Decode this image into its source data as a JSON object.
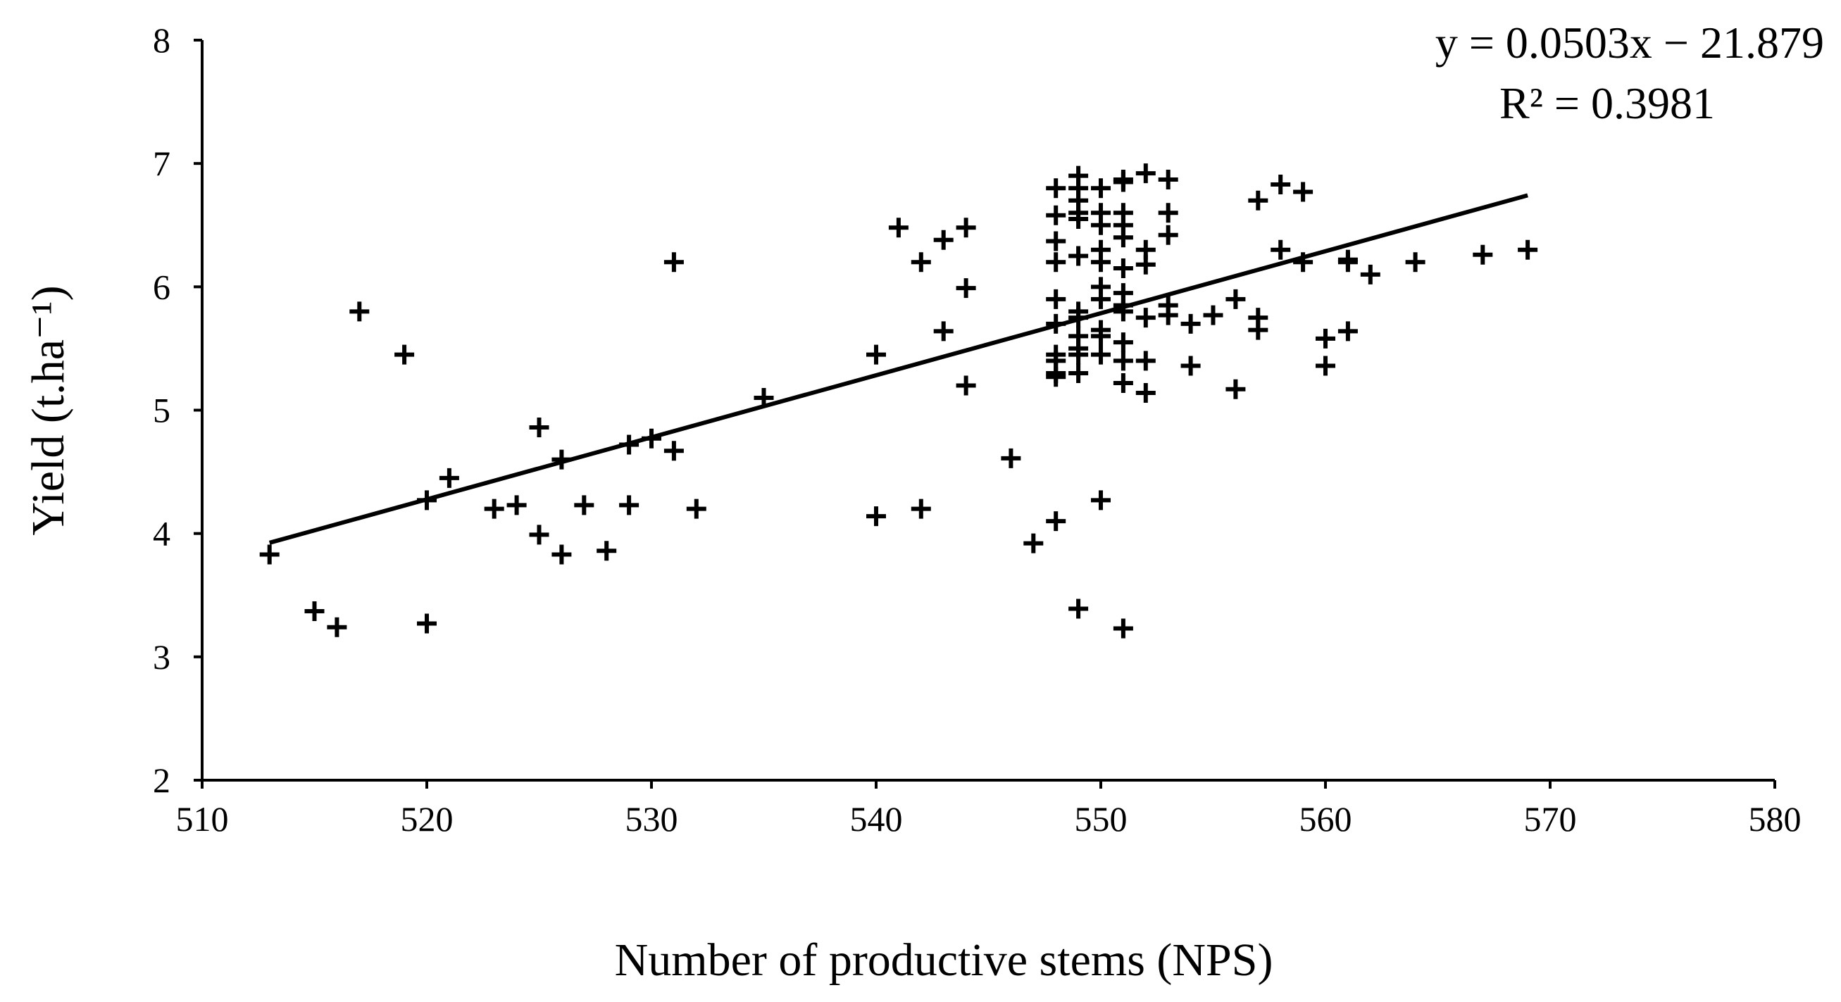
{
  "chart_data": {
    "type": "scatter",
    "title": "",
    "xlabel": "Number of productive stems (NPS)",
    "ylabel": "Yield (t.ha⁻¹)",
    "xlim": [
      510,
      580
    ],
    "ylim": [
      2,
      8
    ],
    "xticks": [
      "510",
      "520",
      "530",
      "540",
      "550",
      "560",
      "570",
      "580"
    ],
    "yticks": [
      "2",
      "3",
      "4",
      "5",
      "6",
      "7",
      "8"
    ],
    "grid": false,
    "marker": "plus",
    "trendline": {
      "slope": 0.0503,
      "intercept": -21.879,
      "x_range": [
        513,
        569
      ]
    },
    "annotations": {
      "equation": "y = 0.0503x − 21.879",
      "r2": "R² = 0.3981"
    },
    "points": [
      [
        513,
        3.83
      ],
      [
        515,
        3.37
      ],
      [
        516,
        3.24
      ],
      [
        517,
        5.8
      ],
      [
        519,
        5.45
      ],
      [
        520,
        4.27
      ],
      [
        520,
        3.27
      ],
      [
        521,
        4.45
      ],
      [
        523,
        4.2
      ],
      [
        524,
        4.23
      ],
      [
        525,
        4.86
      ],
      [
        525,
        3.99
      ],
      [
        526,
        4.6
      ],
      [
        526,
        3.83
      ],
      [
        527,
        4.23
      ],
      [
        528,
        3.86
      ],
      [
        529,
        4.72
      ],
      [
        529,
        4.23
      ],
      [
        530,
        4.77
      ],
      [
        531,
        4.67
      ],
      [
        531,
        6.2
      ],
      [
        532,
        4.2
      ],
      [
        535,
        5.1
      ],
      [
        540,
        5.45
      ],
      [
        540,
        4.14
      ],
      [
        541,
        6.48
      ],
      [
        542,
        6.2
      ],
      [
        542,
        4.2
      ],
      [
        543,
        6.38
      ],
      [
        543,
        5.64
      ],
      [
        544,
        6.48
      ],
      [
        544,
        5.99
      ],
      [
        544,
        5.2
      ],
      [
        546,
        4.61
      ],
      [
        547,
        3.92
      ],
      [
        548,
        4.1
      ],
      [
        549,
        3.39
      ],
      [
        550,
        4.27
      ],
      [
        551,
        3.23
      ],
      [
        548,
        6.8
      ],
      [
        548,
        6.58
      ],
      [
        548,
        6.37
      ],
      [
        548,
        6.2
      ],
      [
        548,
        5.9
      ],
      [
        548,
        5.7
      ],
      [
        548,
        5.45
      ],
      [
        548,
        5.4
      ],
      [
        548,
        5.3
      ],
      [
        548,
        5.27
      ],
      [
        549,
        6.9
      ],
      [
        549,
        6.8
      ],
      [
        549,
        6.7
      ],
      [
        549,
        6.6
      ],
      [
        549,
        6.55
      ],
      [
        549,
        6.25
      ],
      [
        549,
        5.8
      ],
      [
        549,
        5.75
      ],
      [
        549,
        5.6
      ],
      [
        549,
        5.5
      ],
      [
        549,
        5.45
      ],
      [
        549,
        5.3
      ],
      [
        550,
        6.8
      ],
      [
        550,
        6.6
      ],
      [
        550,
        6.5
      ],
      [
        550,
        6.3
      ],
      [
        550,
        6.2
      ],
      [
        550,
        6.0
      ],
      [
        550,
        5.9
      ],
      [
        550,
        5.65
      ],
      [
        550,
        5.6
      ],
      [
        550,
        5.45
      ],
      [
        551,
        6.87
      ],
      [
        551,
        6.85
      ],
      [
        551,
        6.6
      ],
      [
        551,
        6.5
      ],
      [
        551,
        6.4
      ],
      [
        551,
        6.15
      ],
      [
        551,
        5.95
      ],
      [
        551,
        5.85
      ],
      [
        551,
        5.8
      ],
      [
        551,
        5.55
      ],
      [
        551,
        5.4
      ],
      [
        551,
        5.22
      ],
      [
        552,
        6.92
      ],
      [
        552,
        6.3
      ],
      [
        552,
        6.18
      ],
      [
        552,
        5.75
      ],
      [
        552,
        5.4
      ],
      [
        552,
        5.14
      ],
      [
        553,
        6.87
      ],
      [
        553,
        6.6
      ],
      [
        553,
        6.42
      ],
      [
        553,
        5.85
      ],
      [
        553,
        5.77
      ],
      [
        554,
        5.7
      ],
      [
        554,
        5.36
      ],
      [
        555,
        5.77
      ],
      [
        556,
        5.9
      ],
      [
        556,
        5.17
      ],
      [
        557,
        6.7
      ],
      [
        557,
        5.75
      ],
      [
        557,
        5.65
      ],
      [
        558,
        6.83
      ],
      [
        558,
        6.3
      ],
      [
        559,
        6.77
      ],
      [
        559,
        6.2
      ],
      [
        560,
        5.58
      ],
      [
        560,
        5.36
      ],
      [
        561,
        6.22
      ],
      [
        561,
        6.2
      ],
      [
        561,
        5.64
      ],
      [
        562,
        6.1
      ],
      [
        564,
        6.2
      ],
      [
        567,
        6.26
      ],
      [
        569,
        6.3
      ]
    ]
  }
}
